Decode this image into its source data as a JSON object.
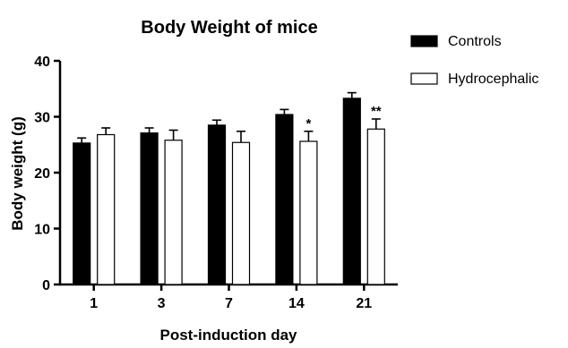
{
  "chart_data": {
    "type": "bar",
    "title": "Body Weight of mice",
    "xlabel": "Post-induction day",
    "ylabel": "Body weight (g)",
    "categories": [
      "1",
      "3",
      "7",
      "14",
      "21"
    ],
    "ylim": [
      0,
      40
    ],
    "yticks": [
      0,
      10,
      20,
      30,
      40
    ],
    "grid": false,
    "legend_position": "top-right",
    "series": [
      {
        "name": "Controls",
        "fill": "#000000",
        "values": [
          25.3,
          27.1,
          28.5,
          30.4,
          33.3
        ],
        "errors": [
          0.9,
          0.9,
          0.9,
          0.9,
          1.0
        ],
        "annotations": [
          "",
          "",
          "",
          "",
          ""
        ]
      },
      {
        "name": "Hydrocephalic",
        "fill": "#ffffff",
        "values": [
          26.8,
          25.8,
          25.4,
          25.6,
          27.8
        ],
        "errors": [
          1.2,
          1.8,
          2.0,
          1.8,
          1.8
        ],
        "annotations": [
          "",
          "",
          "",
          "*",
          "**"
        ]
      }
    ]
  }
}
